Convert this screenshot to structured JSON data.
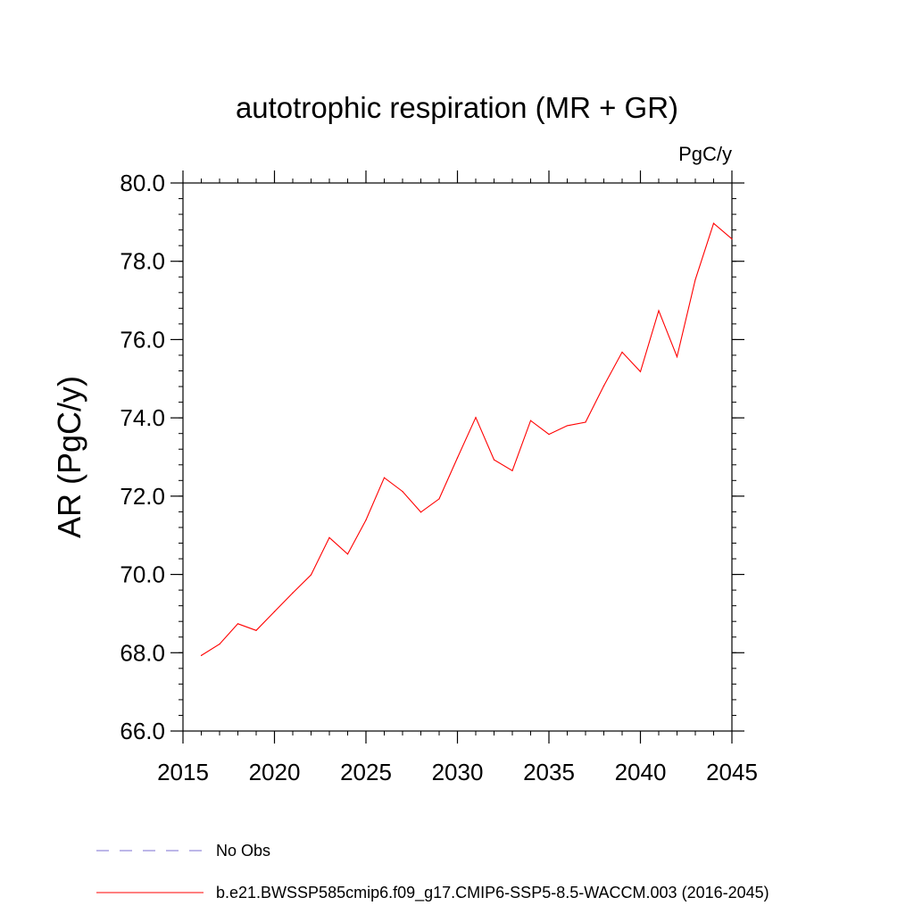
{
  "chart_data": {
    "type": "line",
    "title": "autotrophic respiration (MR + GR)",
    "units": "PgC/y",
    "xlabel": "",
    "ylabel": "AR  (PgC/y)",
    "xlim": [
      2015,
      2045
    ],
    "ylim": [
      66.0,
      80.0
    ],
    "x_ticks": [
      "2015",
      "2020",
      "2025",
      "2030",
      "2035",
      "2040",
      "2045"
    ],
    "y_ticks": [
      "66.0",
      "68.0",
      "70.0",
      "72.0",
      "74.0",
      "76.0",
      "78.0",
      "80.0"
    ],
    "grid": false,
    "legend_position": "bottom",
    "series": [
      {
        "name": "b.e21.BWSSP585cmip6.f09_g17.CMIP6-SSP5-8.5-WACCM.003 (2016-2045)",
        "color": "#ff0000",
        "style": "solid",
        "x": [
          2016,
          2017,
          2018,
          2019,
          2020,
          2021,
          2022,
          2023,
          2024,
          2025,
          2026,
          2027,
          2028,
          2029,
          2030,
          2031,
          2032,
          2033,
          2034,
          2035,
          2036,
          2037,
          2038,
          2039,
          2040,
          2041,
          2042,
          2043,
          2044,
          2045
        ],
        "values": [
          67.93,
          68.22,
          68.74,
          68.57,
          69.05,
          69.53,
          69.99,
          70.94,
          70.52,
          71.39,
          72.47,
          72.12,
          71.59,
          71.93,
          72.98,
          74.01,
          72.93,
          72.65,
          73.93,
          73.58,
          73.8,
          73.89,
          74.82,
          75.68,
          75.18,
          76.74,
          75.56,
          77.53,
          78.97,
          78.57
        ]
      },
      {
        "name": "No Obs",
        "color": "#7b6fd0",
        "style": "dashed",
        "x": [],
        "values": []
      }
    ]
  }
}
